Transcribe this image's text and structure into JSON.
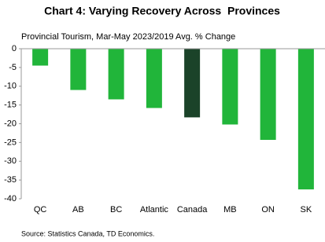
{
  "chart_data": {
    "type": "bar",
    "title": "Chart 4: Varying Recovery Across  Provinces",
    "subtitle": "Provincial Tourism, Mar-May 2023/2019 Avg. % Change",
    "source": "Source: Statistics Canada, TD Economics.",
    "categories": [
      "QC",
      "AB",
      "BC",
      "Atlantic",
      "Canada",
      "MB",
      "ON",
      "SK"
    ],
    "values": [
      -4.5,
      -11,
      -13.5,
      -15.8,
      -18.3,
      -20.2,
      -24.3,
      -37.5
    ],
    "colors": [
      "#21b53a",
      "#21b53a",
      "#21b53a",
      "#21b53a",
      "#1b4329",
      "#21b53a",
      "#21b53a",
      "#21b53a"
    ],
    "ylim": [
      -40,
      0
    ],
    "yticks": [
      0,
      -5,
      -10,
      -15,
      -20,
      -25,
      -30,
      -35,
      -40
    ],
    "grid": false
  }
}
